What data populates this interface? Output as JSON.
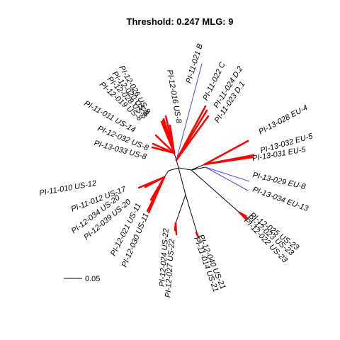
{
  "chart_data": {
    "type": "unrooted-phylogenetic-tree",
    "title": "Threshold: 0.247 MLG: 9",
    "scale_bar_label": "0.05",
    "colors": {
      "highlight": "#ff0000",
      "internal": "#000000",
      "other": "#4444ff"
    },
    "clades": [
      {
        "tips": [
          "PI-11-021 B"
        ],
        "color": "blue"
      },
      {
        "tips": [
          "PI-11-022 C",
          "PI-11-024 D.2",
          "PI-11-023 D.1"
        ],
        "color": "red"
      },
      {
        "tips": [
          "PI-13-028 EU-4",
          "PI-13-032 EU-5",
          "PI-13-031 EU-5"
        ],
        "color": "red"
      },
      {
        "tips": [
          "PI-13-029 EU-8",
          "PI-13-034 EU-13"
        ],
        "color": "blue"
      },
      {
        "tips": [
          "PI-12-025 US-23",
          "PI-12-023 US-23",
          "PI-12-022 US-23"
        ],
        "color": "red"
      },
      {
        "tips": [
          "PI-12-040 US-21",
          "PI-11-014 US-21"
        ],
        "color": "red"
      },
      {
        "tips": [
          "PI-12-024 US-22",
          "PI-12-027 US-22"
        ],
        "color": "red"
      },
      {
        "tips": [
          "PI-12-021 US-11",
          "PI-12-030 US-11",
          "PI-12-034 US-20",
          "PI-12-039 US-20",
          "PI-11-010 US-12",
          "PI-11-012 US-17"
        ],
        "color": "red"
      },
      {
        "tips": [
          "PI-11-011 US-14",
          "PI-12-032 US-8",
          "PI-13-033 US-8",
          "PI-12-019 US-8",
          "PI-12-028 US-8",
          "PI-12-020 US-8",
          "PI-12-026 US-8",
          "PI-12-016 US-8"
        ],
        "color": "red"
      }
    ],
    "tips": [
      {
        "label": "PI-11-021 B",
        "color": "blue"
      },
      {
        "label": "PI-11-022 C",
        "color": "red"
      },
      {
        "label": "PI-11-024 D.2",
        "color": "red"
      },
      {
        "label": "PI-11-023 D.1",
        "color": "red"
      },
      {
        "label": "PI-13-028 EU-4",
        "color": "red"
      },
      {
        "label": "PI-13-032 EU-5",
        "color": "red"
      },
      {
        "label": "PI-13-031 EU-5",
        "color": "red"
      },
      {
        "label": "PI-13-029 EU-8",
        "color": "blue"
      },
      {
        "label": "PI-13-034 EU-13",
        "color": "blue"
      },
      {
        "label": "PI-12-025 US-23",
        "color": "red"
      },
      {
        "label": "PI-12-023 US-23",
        "color": "red"
      },
      {
        "label": "PI-12-022 US-23",
        "color": "red"
      },
      {
        "label": "PI-12-040 US-21",
        "color": "red"
      },
      {
        "label": "PI-11-014 US-21",
        "color": "red"
      },
      {
        "label": "PI-12-027 US-22",
        "color": "red"
      },
      {
        "label": "PI-12-024 US-22",
        "color": "red"
      },
      {
        "label": "PI-12-030 US-11",
        "color": "red"
      },
      {
        "label": "PI-12-021 US-11",
        "color": "red"
      },
      {
        "label": "PI-12-039 US-20",
        "color": "red"
      },
      {
        "label": "PI-12-034 US-20",
        "color": "red"
      },
      {
        "label": "PI-11-012 US-17",
        "color": "red"
      },
      {
        "label": "PI-11-010 US-12",
        "color": "red"
      },
      {
        "label": "PI-13-033 US-8",
        "color": "red"
      },
      {
        "label": "PI-12-032 US-8",
        "color": "red"
      },
      {
        "label": "PI-11-011 US-14",
        "color": "red"
      },
      {
        "label": "PI-12-019 US-8",
        "color": "red"
      },
      {
        "label": "PI-12-028 US-8",
        "color": "red"
      },
      {
        "label": "PI-12-020 US-8",
        "color": "red"
      },
      {
        "label": "PI-12-026 US-8",
        "color": "red"
      },
      {
        "label": "PI-12-016 US-8",
        "color": "red"
      }
    ]
  }
}
